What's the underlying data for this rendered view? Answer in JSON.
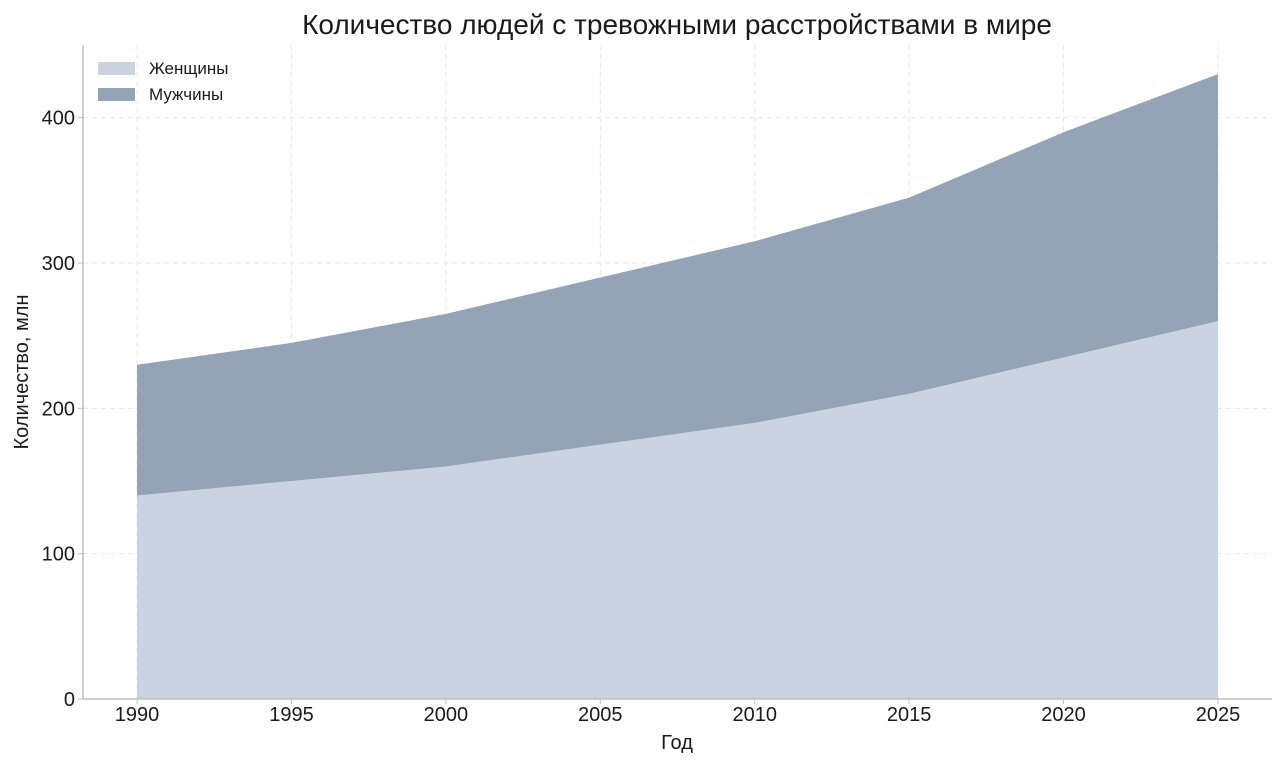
{
  "chart_data": {
    "type": "area",
    "stacked": true,
    "title": "Количество людей с тревожными расстройствами в мире",
    "xlabel": "Год",
    "ylabel": "Количество, млн",
    "x": [
      1990,
      1995,
      2000,
      2005,
      2010,
      2015,
      2020,
      2025
    ],
    "x_ticks": [
      "1990",
      "1995",
      "2000",
      "2005",
      "2010",
      "2015",
      "2020",
      "2025"
    ],
    "y_ticks": [
      "0",
      "100",
      "200",
      "300",
      "400"
    ],
    "ylim": [
      0,
      450
    ],
    "xlim": [
      1988.25,
      2026.75
    ],
    "grid": true,
    "legend_position": "top-left",
    "series": [
      {
        "name": "Женщины",
        "color": "#cad4e0",
        "values": [
          140,
          150,
          160,
          175,
          190,
          210,
          235,
          260
        ]
      },
      {
        "name": "Мужчины",
        "color": "#94a3b6",
        "values": [
          90,
          95,
          105,
          115,
          125,
          135,
          155,
          170
        ]
      }
    ]
  }
}
